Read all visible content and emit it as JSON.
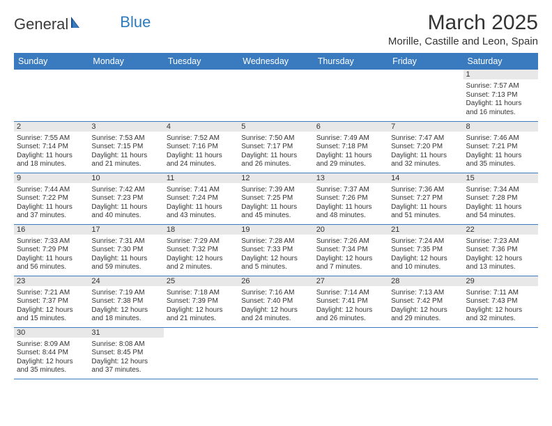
{
  "logo": {
    "part1": "General",
    "part2": "Blue"
  },
  "title": "March 2025",
  "subtitle": "Morille, Castille and Leon, Spain",
  "colors": {
    "header_bg": "#3a7bbf",
    "header_text": "#ffffff",
    "daynum_bg": "#e8e8e8",
    "border": "#3a7bbf",
    "text": "#333333",
    "logo_blue": "#2b7bbf"
  },
  "weekdays": [
    "Sunday",
    "Monday",
    "Tuesday",
    "Wednesday",
    "Thursday",
    "Friday",
    "Saturday"
  ],
  "weeks": [
    [
      null,
      null,
      null,
      null,
      null,
      null,
      {
        "d": "1",
        "sr": "7:57 AM",
        "ss": "7:13 PM",
        "dl": "11 hours",
        "dm": "and 16 minutes."
      }
    ],
    [
      {
        "d": "2",
        "sr": "7:55 AM",
        "ss": "7:14 PM",
        "dl": "11 hours",
        "dm": "and 18 minutes."
      },
      {
        "d": "3",
        "sr": "7:53 AM",
        "ss": "7:15 PM",
        "dl": "11 hours",
        "dm": "and 21 minutes."
      },
      {
        "d": "4",
        "sr": "7:52 AM",
        "ss": "7:16 PM",
        "dl": "11 hours",
        "dm": "and 24 minutes."
      },
      {
        "d": "5",
        "sr": "7:50 AM",
        "ss": "7:17 PM",
        "dl": "11 hours",
        "dm": "and 26 minutes."
      },
      {
        "d": "6",
        "sr": "7:49 AM",
        "ss": "7:18 PM",
        "dl": "11 hours",
        "dm": "and 29 minutes."
      },
      {
        "d": "7",
        "sr": "7:47 AM",
        "ss": "7:20 PM",
        "dl": "11 hours",
        "dm": "and 32 minutes."
      },
      {
        "d": "8",
        "sr": "7:46 AM",
        "ss": "7:21 PM",
        "dl": "11 hours",
        "dm": "and 35 minutes."
      }
    ],
    [
      {
        "d": "9",
        "sr": "7:44 AM",
        "ss": "7:22 PM",
        "dl": "11 hours",
        "dm": "and 37 minutes."
      },
      {
        "d": "10",
        "sr": "7:42 AM",
        "ss": "7:23 PM",
        "dl": "11 hours",
        "dm": "and 40 minutes."
      },
      {
        "d": "11",
        "sr": "7:41 AM",
        "ss": "7:24 PM",
        "dl": "11 hours",
        "dm": "and 43 minutes."
      },
      {
        "d": "12",
        "sr": "7:39 AM",
        "ss": "7:25 PM",
        "dl": "11 hours",
        "dm": "and 45 minutes."
      },
      {
        "d": "13",
        "sr": "7:37 AM",
        "ss": "7:26 PM",
        "dl": "11 hours",
        "dm": "and 48 minutes."
      },
      {
        "d": "14",
        "sr": "7:36 AM",
        "ss": "7:27 PM",
        "dl": "11 hours",
        "dm": "and 51 minutes."
      },
      {
        "d": "15",
        "sr": "7:34 AM",
        "ss": "7:28 PM",
        "dl": "11 hours",
        "dm": "and 54 minutes."
      }
    ],
    [
      {
        "d": "16",
        "sr": "7:33 AM",
        "ss": "7:29 PM",
        "dl": "11 hours",
        "dm": "and 56 minutes."
      },
      {
        "d": "17",
        "sr": "7:31 AM",
        "ss": "7:30 PM",
        "dl": "11 hours",
        "dm": "and 59 minutes."
      },
      {
        "d": "18",
        "sr": "7:29 AM",
        "ss": "7:32 PM",
        "dl": "12 hours",
        "dm": "and 2 minutes."
      },
      {
        "d": "19",
        "sr": "7:28 AM",
        "ss": "7:33 PM",
        "dl": "12 hours",
        "dm": "and 5 minutes."
      },
      {
        "d": "20",
        "sr": "7:26 AM",
        "ss": "7:34 PM",
        "dl": "12 hours",
        "dm": "and 7 minutes."
      },
      {
        "d": "21",
        "sr": "7:24 AM",
        "ss": "7:35 PM",
        "dl": "12 hours",
        "dm": "and 10 minutes."
      },
      {
        "d": "22",
        "sr": "7:23 AM",
        "ss": "7:36 PM",
        "dl": "12 hours",
        "dm": "and 13 minutes."
      }
    ],
    [
      {
        "d": "23",
        "sr": "7:21 AM",
        "ss": "7:37 PM",
        "dl": "12 hours",
        "dm": "and 15 minutes."
      },
      {
        "d": "24",
        "sr": "7:19 AM",
        "ss": "7:38 PM",
        "dl": "12 hours",
        "dm": "and 18 minutes."
      },
      {
        "d": "25",
        "sr": "7:18 AM",
        "ss": "7:39 PM",
        "dl": "12 hours",
        "dm": "and 21 minutes."
      },
      {
        "d": "26",
        "sr": "7:16 AM",
        "ss": "7:40 PM",
        "dl": "12 hours",
        "dm": "and 24 minutes."
      },
      {
        "d": "27",
        "sr": "7:14 AM",
        "ss": "7:41 PM",
        "dl": "12 hours",
        "dm": "and 26 minutes."
      },
      {
        "d": "28",
        "sr": "7:13 AM",
        "ss": "7:42 PM",
        "dl": "12 hours",
        "dm": "and 29 minutes."
      },
      {
        "d": "29",
        "sr": "7:11 AM",
        "ss": "7:43 PM",
        "dl": "12 hours",
        "dm": "and 32 minutes."
      }
    ],
    [
      {
        "d": "30",
        "sr": "8:09 AM",
        "ss": "8:44 PM",
        "dl": "12 hours",
        "dm": "and 35 minutes."
      },
      {
        "d": "31",
        "sr": "8:08 AM",
        "ss": "8:45 PM",
        "dl": "12 hours",
        "dm": "and 37 minutes."
      },
      null,
      null,
      null,
      null,
      null
    ]
  ],
  "labels": {
    "sunrise": "Sunrise:",
    "sunset": "Sunset:",
    "daylight": "Daylight:"
  }
}
